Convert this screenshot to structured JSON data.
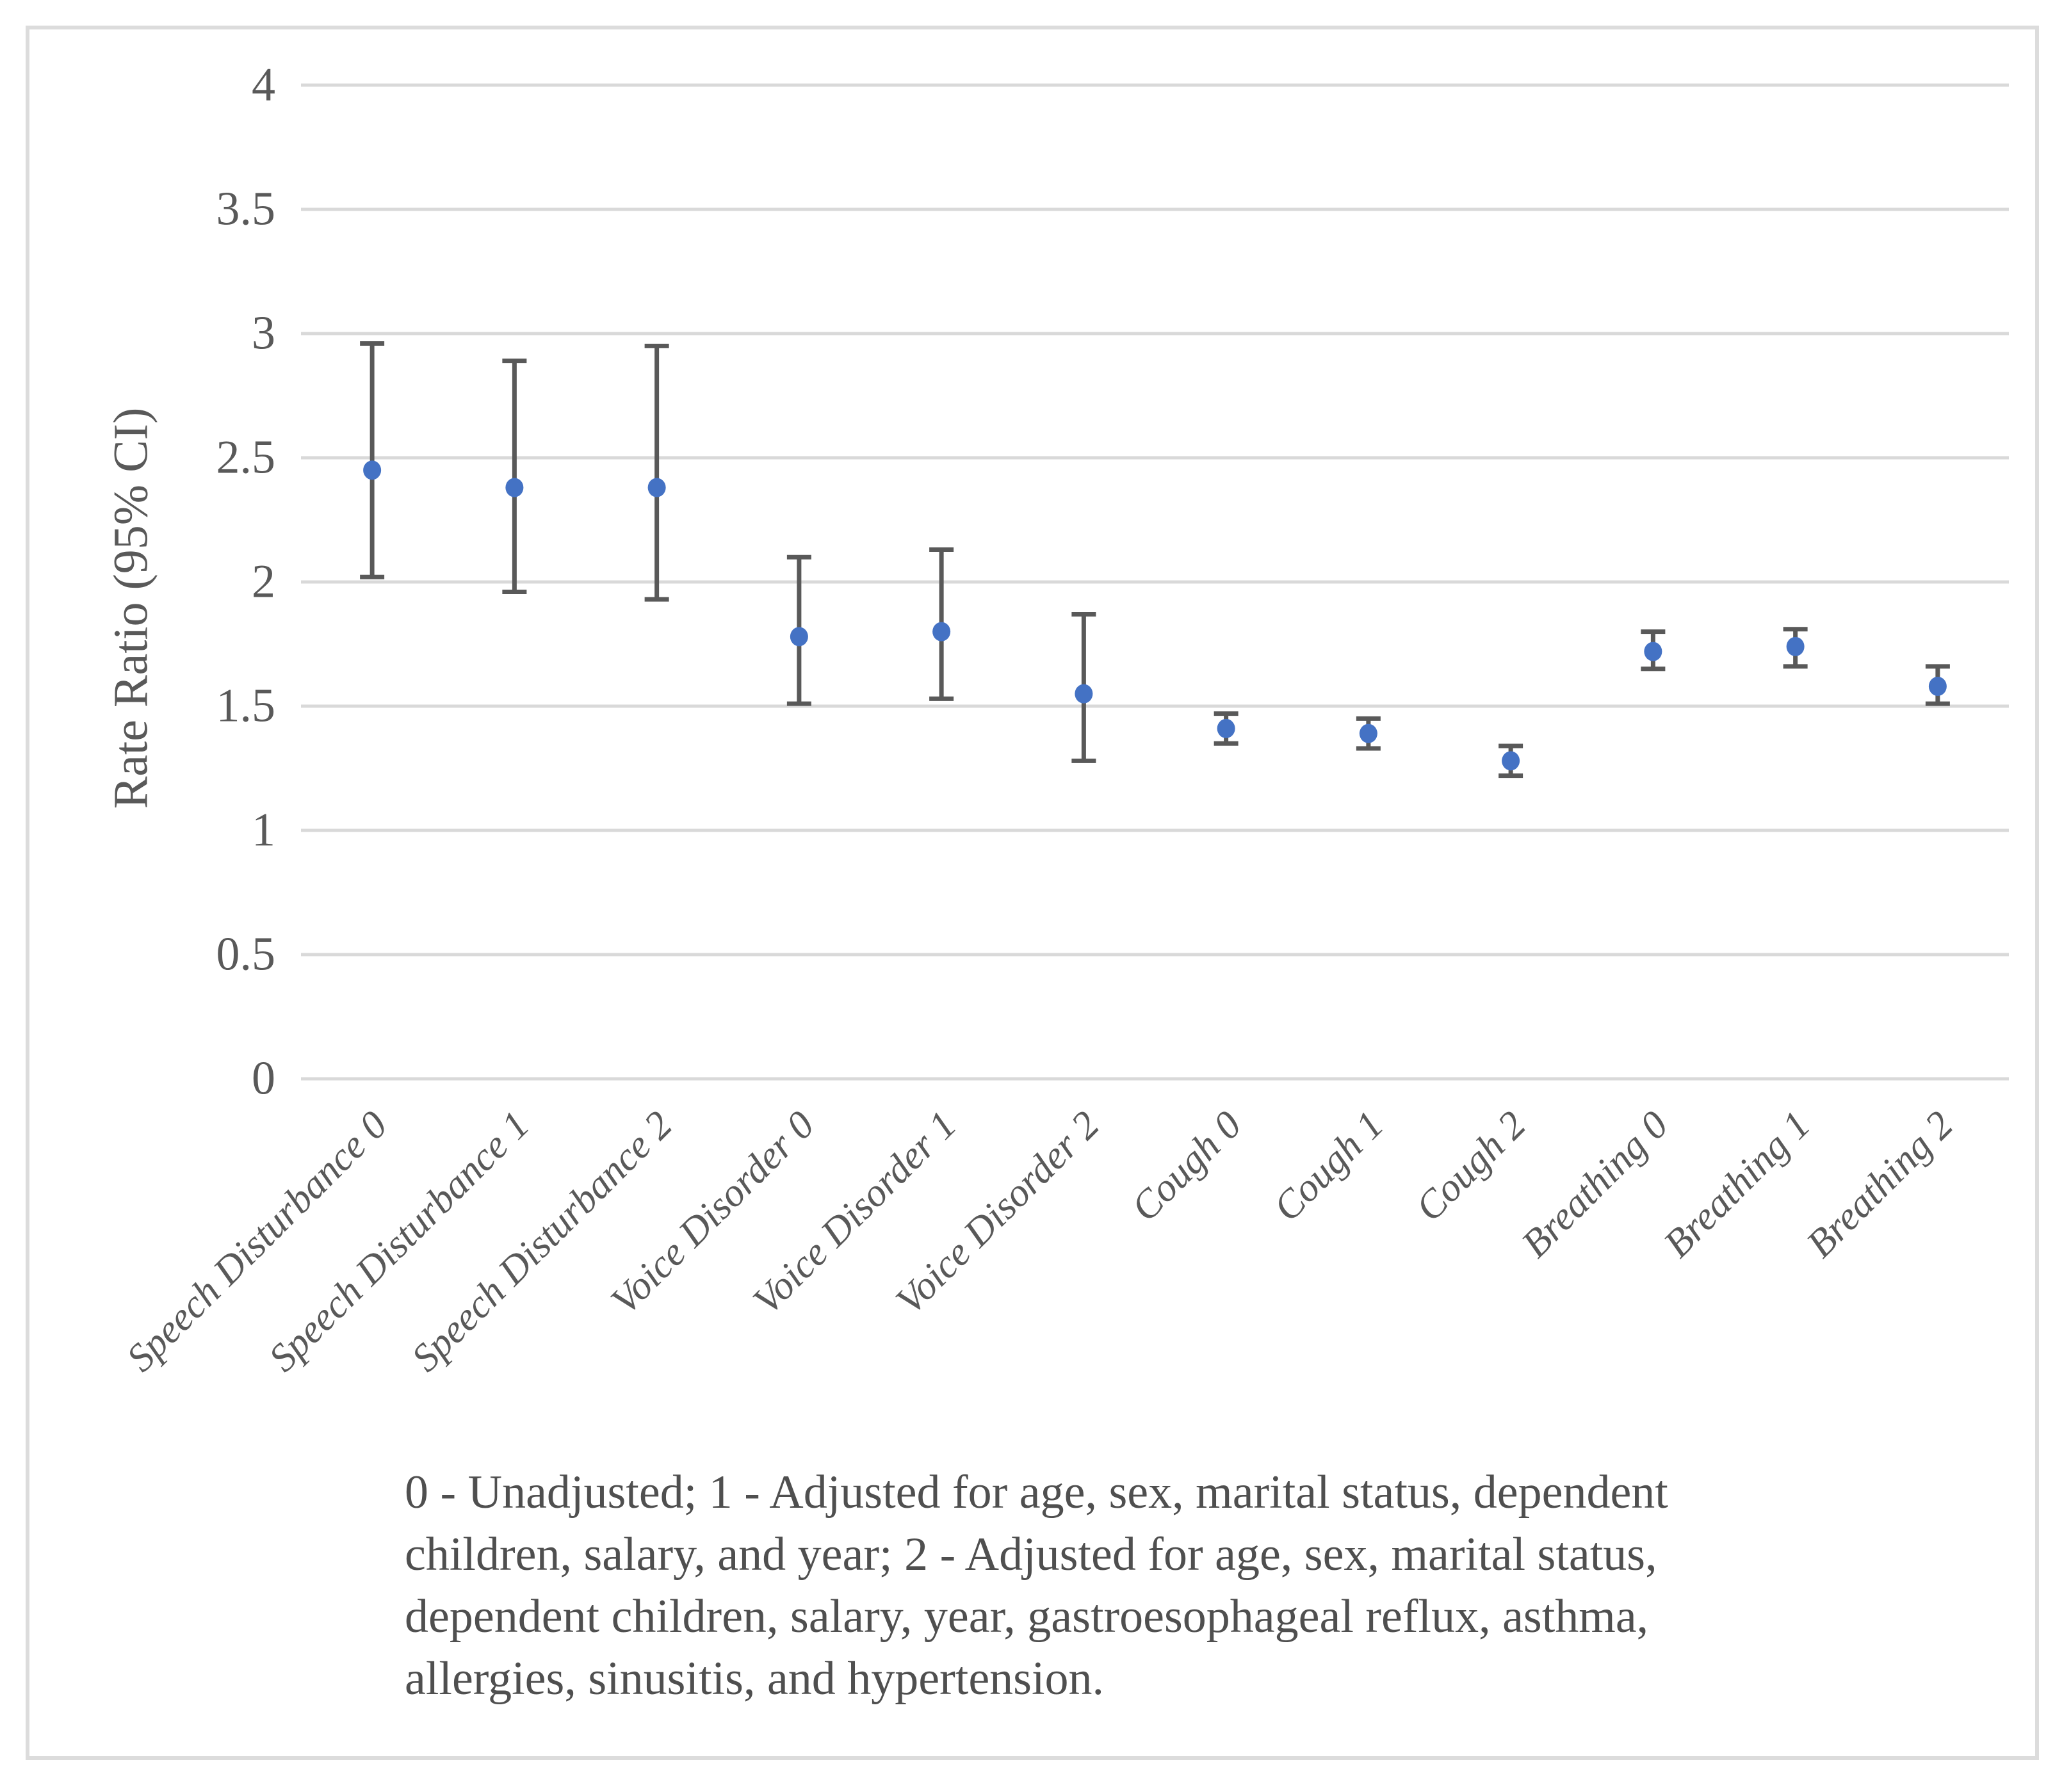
{
  "figure": {
    "background": "#ffffff",
    "border_color": "#dcdcdc"
  },
  "chart_data": {
    "type": "scatter",
    "subtype": "point-estimates-with-95ci-error-bars",
    "title": "",
    "xlabel": "",
    "ylabel": "Rate Ratio (95% CI)",
    "ylim": [
      0,
      4
    ],
    "ytick_values": [
      4,
      3.5,
      3,
      2.5,
      2,
      1.5,
      1,
      0.5,
      0
    ],
    "ytick_labels": [
      "4",
      "3.5",
      "3",
      "2.5",
      "2",
      "1.5",
      "1",
      "0.5",
      "0"
    ],
    "grid": "horizontal-only",
    "legend_position": "none",
    "marker_color": "#4472C4",
    "errorbar_color": "#595959",
    "gridline_color": "#D9D9D9",
    "categories": [
      "Speech Disturbance 0",
      "Speech Disturbance 1",
      "Speech Disturbance 2",
      "Voice Disorder 0",
      "Voice Disorder 1",
      "Voice Disorder 2",
      "Cough 0",
      "Cough 1",
      "Cough 2",
      "Breathing 0",
      "Breathing 1",
      "Breathing 2"
    ],
    "series": [
      {
        "name": "Rate Ratio",
        "values": [
          2.45,
          2.38,
          2.38,
          1.78,
          1.8,
          1.55,
          1.41,
          1.39,
          1.28,
          1.72,
          1.74,
          1.58
        ],
        "ci_low": [
          2.02,
          1.96,
          1.93,
          1.51,
          1.53,
          1.28,
          1.35,
          1.33,
          1.22,
          1.65,
          1.66,
          1.51
        ],
        "ci_high": [
          2.96,
          2.89,
          2.95,
          2.1,
          2.13,
          1.87,
          1.47,
          1.45,
          1.34,
          1.8,
          1.81,
          1.66
        ]
      }
    ]
  },
  "caption": {
    "lines": [
      "0 - Unadjusted; 1 - Adjusted for age, sex, marital status, dependent",
      "children, salary, and year; 2 - Adjusted for age, sex, marital status,",
      "dependent children, salary, year, gastroesophageal reflux, asthma,",
      "allergies, sinusitis, and hypertension."
    ]
  }
}
